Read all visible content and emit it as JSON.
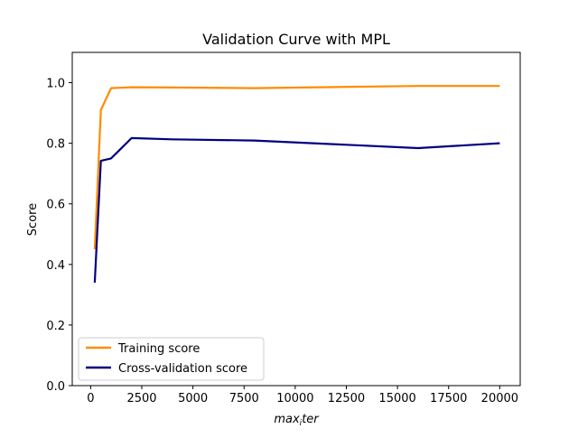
{
  "chart_data": {
    "type": "line",
    "title": "Validation Curve with MPL",
    "xlabel_main": "max",
    "xlabel_sub": "i",
    "xlabel_tail": "ter",
    "ylabel": "Score",
    "xlim": [
      -900,
      21000
    ],
    "ylim": [
      0.0,
      1.1
    ],
    "xticks": [
      0,
      2500,
      5000,
      7500,
      10000,
      12500,
      15000,
      17500,
      20000
    ],
    "yticks": [
      0.0,
      0.2,
      0.4,
      0.6,
      0.8,
      1.0
    ],
    "x": [
      200,
      500,
      1000,
      2000,
      4000,
      8000,
      16000,
      20000
    ],
    "series": [
      {
        "name": "Training score",
        "color": "#ff8c00",
        "values": [
          0.45,
          0.91,
          0.982,
          0.985,
          0.984,
          0.982,
          0.989,
          0.989
        ]
      },
      {
        "name": "Cross-validation score",
        "color": "#000080",
        "values": [
          0.34,
          0.742,
          0.75,
          0.817,
          0.813,
          0.809,
          0.784,
          0.8
        ]
      }
    ],
    "legend_position": "lower-left",
    "grid": false
  }
}
